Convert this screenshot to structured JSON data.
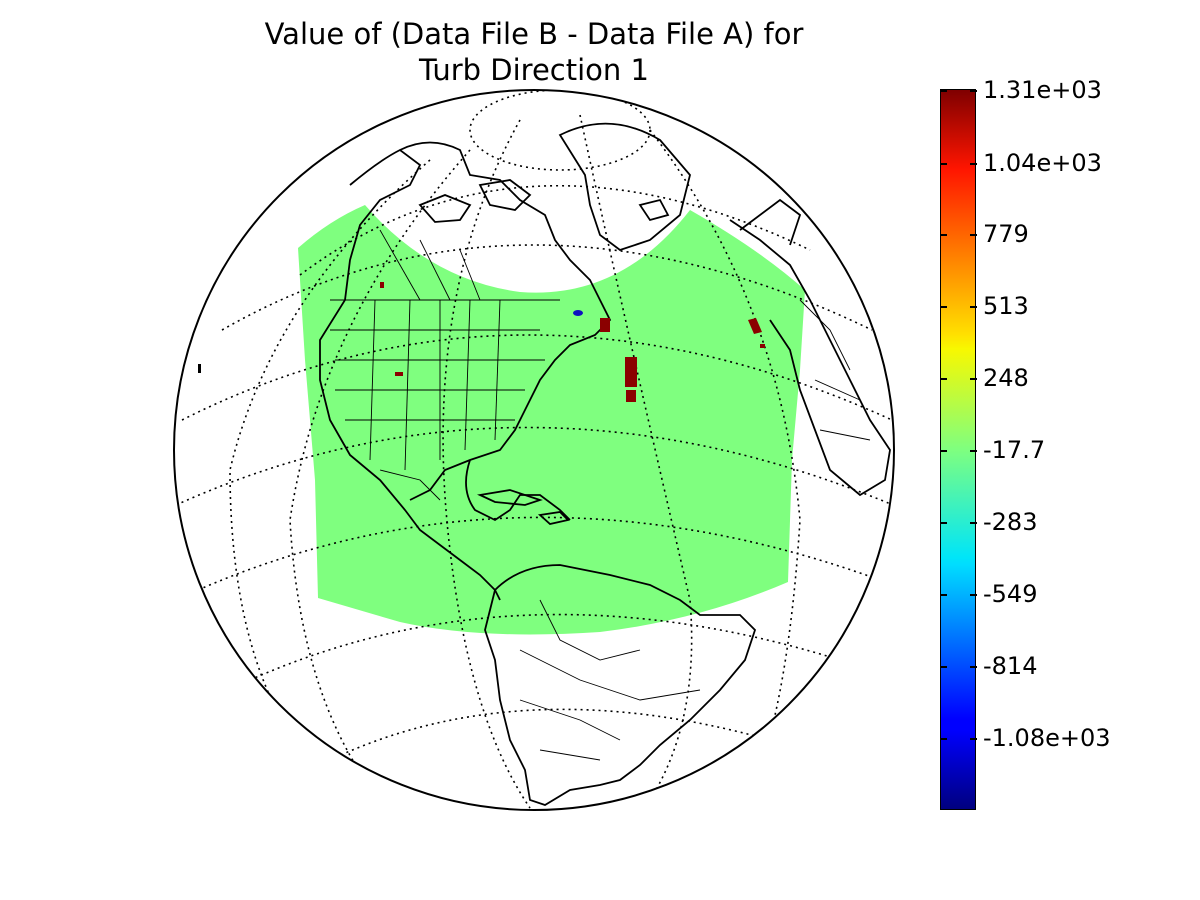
{
  "title": {
    "line1": "Value of (Data File B - Data File A) for",
    "line2": "Turb Direction 1"
  },
  "colorbar": {
    "min": -1340,
    "max": 1310,
    "ticks": [
      {
        "value": 1310,
        "label": "1.31e+03"
      },
      {
        "value": 1040,
        "label": "1.04e+03"
      },
      {
        "value": 779,
        "label": "779"
      },
      {
        "value": 513,
        "label": "513"
      },
      {
        "value": 248,
        "label": "248"
      },
      {
        "value": -17.7,
        "label": "-17.7"
      },
      {
        "value": -283,
        "label": "-283"
      },
      {
        "value": -549,
        "label": "-549"
      },
      {
        "value": -814,
        "label": "-814"
      },
      {
        "value": -1080,
        "label": "-1.08e+03"
      }
    ],
    "colormap": "jet"
  },
  "map": {
    "projection": "orthographic",
    "field_color": "#7fff7f",
    "anomaly_color": "#8b0000",
    "negative_anomaly_color": "#1010c0",
    "graticule": "dotted"
  }
}
